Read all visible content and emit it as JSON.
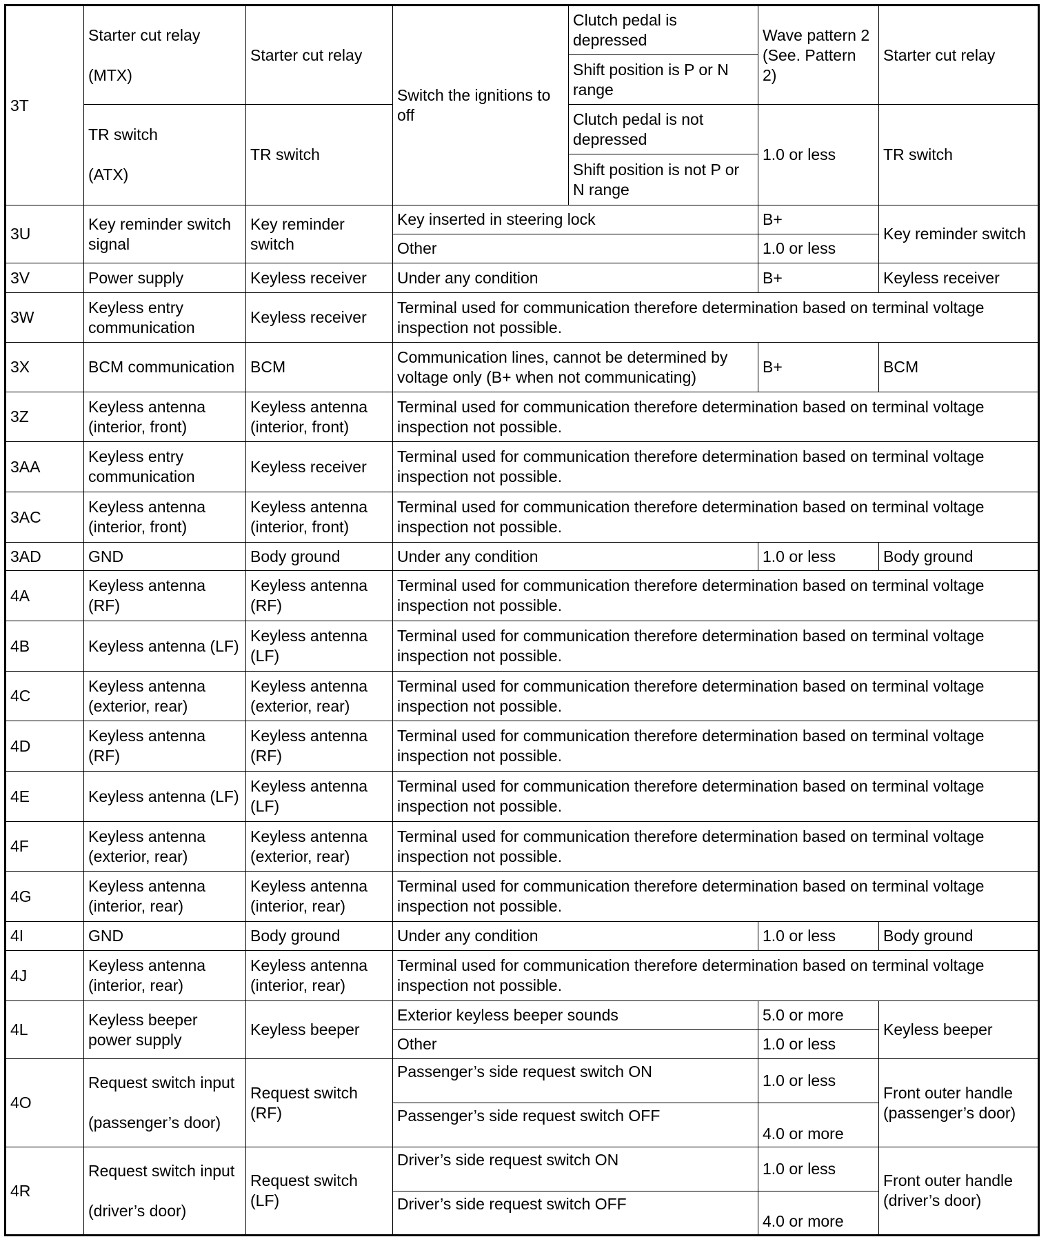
{
  "table": {
    "rows": [
      {
        "h": 72,
        "cells": [
          {
            "text": "3T",
            "rs": 4
          },
          {
            "text": "Starter cut relay\n\n(MTX)",
            "rs": 2
          },
          {
            "text": "Starter cut relay",
            "rs": 2
          },
          {
            "text": "Switch the ignitions to off",
            "rs": 4
          },
          {
            "text": "Clutch pedal is depressed"
          },
          {
            "text": "Wave pattern 2 (See. Pattern 2)",
            "rs": 2
          },
          {
            "text": "Starter cut relay",
            "rs": 2
          }
        ]
      },
      {
        "h": 72,
        "cells": [
          {
            "text": "Shift position is P or N range"
          }
        ]
      },
      {
        "h": 72,
        "cells": [
          {
            "text": "TR switch\n\n(ATX)",
            "rs": 2
          },
          {
            "text": "TR switch",
            "rs": 2
          },
          {
            "text": "Clutch pedal is not depressed"
          },
          {
            "text": "1.0 or less",
            "rs": 2
          },
          {
            "text": "TR switch",
            "rs": 2
          }
        ]
      },
      {
        "h": 74,
        "cells": [
          {
            "text": "Shift position is not P or N range"
          }
        ]
      },
      {
        "h": 42,
        "cells": [
          {
            "text": "3U",
            "rs": 2
          },
          {
            "text": "Key reminder switch signal",
            "rs": 2
          },
          {
            "text": "Key reminder switch",
            "rs": 2
          },
          {
            "text": "Key inserted in steering lock",
            "cs": 2
          },
          {
            "text": "B+"
          },
          {
            "text": "Key reminder switch",
            "rs": 2
          }
        ]
      },
      {
        "h": 42,
        "cells": [
          {
            "text": "Other",
            "cs": 2
          },
          {
            "text": "1.0 or less"
          }
        ]
      },
      {
        "h": 43,
        "cells": [
          {
            "text": "3V"
          },
          {
            "text": "Power supply"
          },
          {
            "text": "Keyless receiver"
          },
          {
            "text": "Under any condition",
            "cs": 2
          },
          {
            "text": "B+"
          },
          {
            "text": "Keyless receiver"
          }
        ]
      },
      {
        "h": 72,
        "cells": [
          {
            "text": "3W"
          },
          {
            "text": "Keyless entry communication"
          },
          {
            "text": "Keyless receiver"
          },
          {
            "text": "Terminal used for communication therefore determination based on terminal voltage inspection not possible.",
            "cs": 4
          }
        ]
      },
      {
        "h": 72,
        "cells": [
          {
            "text": "3X"
          },
          {
            "text": "BCM communication"
          },
          {
            "text": "BCM"
          },
          {
            "text": "Communication lines, cannot be determined by voltage only (B+ when not communicating)",
            "cs": 2
          },
          {
            "text": "B+"
          },
          {
            "text": "BCM"
          }
        ]
      },
      {
        "h": 72,
        "cells": [
          {
            "text": "3Z"
          },
          {
            "text": "Keyless antenna (interior, front)"
          },
          {
            "text": "Keyless antenna (interior, front)"
          },
          {
            "text": "Terminal used for communication therefore determination based on terminal voltage inspection not possible.",
            "cs": 4
          }
        ]
      },
      {
        "h": 73,
        "cells": [
          {
            "text": "3AA"
          },
          {
            "text": "Keyless entry communication"
          },
          {
            "text": "Keyless receiver"
          },
          {
            "text": "Terminal used for communication therefore determination based on terminal voltage inspection not possible.",
            "cs": 4
          }
        ]
      },
      {
        "h": 73,
        "cells": [
          {
            "text": "3AC"
          },
          {
            "text": "Keyless antenna (interior, front)"
          },
          {
            "text": "Keyless antenna (interior, front)"
          },
          {
            "text": "Terminal used for communication therefore determination based on terminal voltage inspection not possible.",
            "cs": 4
          }
        ]
      },
      {
        "h": 41,
        "cells": [
          {
            "text": "3AD"
          },
          {
            "text": "GND"
          },
          {
            "text": "Body ground"
          },
          {
            "text": "Under any condition",
            "cs": 2
          },
          {
            "text": "1.0 or less"
          },
          {
            "text": "Body ground"
          }
        ]
      },
      {
        "h": 73,
        "cells": [
          {
            "text": "4A"
          },
          {
            "text": "Keyless antenna (RF)"
          },
          {
            "text": "Keyless antenna (RF)"
          },
          {
            "text": "Terminal used for communication therefore determination based on terminal voltage inspection not possible.",
            "cs": 4
          }
        ]
      },
      {
        "h": 73,
        "cells": [
          {
            "text": "4B"
          },
          {
            "text": "Keyless antenna (LF)"
          },
          {
            "text": "Keyless antenna (LF)"
          },
          {
            "text": "Terminal used for communication therefore determination based on terminal voltage inspection not possible.",
            "cs": 4
          }
        ]
      },
      {
        "h": 72,
        "cells": [
          {
            "text": "4C"
          },
          {
            "text": "Keyless antenna (exterior, rear)"
          },
          {
            "text": "Keyless antenna (exterior, rear)"
          },
          {
            "text": "Terminal used for communication therefore determination based on terminal voltage inspection not possible.",
            "cs": 4
          }
        ]
      },
      {
        "h": 73,
        "cells": [
          {
            "text": "4D"
          },
          {
            "text": "Keyless antenna (RF)"
          },
          {
            "text": "Keyless antenna (RF)"
          },
          {
            "text": "Terminal used for communication therefore determination based on terminal voltage inspection not possible.",
            "cs": 4
          }
        ]
      },
      {
        "h": 73,
        "cells": [
          {
            "text": "4E"
          },
          {
            "text": "Keyless antenna (LF)"
          },
          {
            "text": "Keyless antenna (LF)"
          },
          {
            "text": "Terminal used for communication therefore determination based on terminal voltage inspection not possible.",
            "cs": 4
          }
        ]
      },
      {
        "h": 72,
        "cells": [
          {
            "text": "4F"
          },
          {
            "text": "Keyless antenna (exterior, rear)"
          },
          {
            "text": "Keyless antenna (exterior, rear)"
          },
          {
            "text": "Terminal used for communication therefore determination based on terminal voltage inspection not possible.",
            "cs": 4
          }
        ]
      },
      {
        "h": 73,
        "cells": [
          {
            "text": "4G"
          },
          {
            "text": "Keyless antenna (interior, rear)"
          },
          {
            "text": "Keyless antenna (interior, rear)"
          },
          {
            "text": "Terminal used for communication therefore determination based on terminal voltage inspection not possible.",
            "cs": 4
          }
        ]
      },
      {
        "h": 42,
        "cells": [
          {
            "text": "4I"
          },
          {
            "text": "GND"
          },
          {
            "text": "Body ground"
          },
          {
            "text": "Under any condition",
            "cs": 2
          },
          {
            "text": "1.0 or less"
          },
          {
            "text": "Body ground"
          }
        ]
      },
      {
        "h": 73,
        "cells": [
          {
            "text": "4J"
          },
          {
            "text": "Keyless antenna (interior, rear)"
          },
          {
            "text": "Keyless antenna (interior, rear)"
          },
          {
            "text": "Terminal used for communication therefore determination based on terminal voltage inspection not possible.",
            "cs": 4
          }
        ]
      },
      {
        "h": 42,
        "cells": [
          {
            "text": "4L",
            "rs": 2
          },
          {
            "text": "Keyless beeper power supply",
            "rs": 2
          },
          {
            "text": "Keyless beeper",
            "rs": 2
          },
          {
            "text": "Exterior keyless beeper sounds",
            "cs": 2
          },
          {
            "text": "5.0 or more"
          },
          {
            "text": "Keyless beeper",
            "rs": 2
          }
        ]
      },
      {
        "h": 42,
        "cells": [
          {
            "text": "Other",
            "cs": 2
          },
          {
            "text": "1.0 or less"
          }
        ]
      },
      {
        "h": 64,
        "cells": [
          {
            "text": "4O",
            "rs": 2
          },
          {
            "text": "Request switch input\n\n(passenger’s door)",
            "rs": 2
          },
          {
            "text": "Request switch (RF)",
            "rs": 2
          },
          {
            "text": "Passenger’s side request switch ON",
            "cs": 2,
            "va": "top"
          },
          {
            "text": "1.0 or less"
          },
          {
            "text": "Front outer handle (passenger’s door)",
            "rs": 2
          }
        ]
      },
      {
        "h": 64,
        "cells": [
          {
            "text": "Passenger’s side request switch OFF",
            "cs": 2,
            "va": "top"
          },
          {
            "text": "4.0 or more",
            "va": "bot"
          }
        ]
      },
      {
        "h": 64,
        "cells": [
          {
            "text": "4R",
            "rs": 2
          },
          {
            "text": "Request switch input\n\n(driver’s door)",
            "rs": 2
          },
          {
            "text": "Request switch (LF)",
            "rs": 2
          },
          {
            "text": "Driver’s side request switch ON",
            "cs": 2,
            "va": "top"
          },
          {
            "text": "1.0 or less"
          },
          {
            "text": "Front outer handle (driver’s door)",
            "rs": 2
          }
        ]
      },
      {
        "h": 64,
        "cells": [
          {
            "text": "Driver’s side request switch OFF",
            "cs": 2,
            "va": "top"
          },
          {
            "text": "4.0 or more",
            "va": "bot"
          }
        ]
      }
    ]
  }
}
